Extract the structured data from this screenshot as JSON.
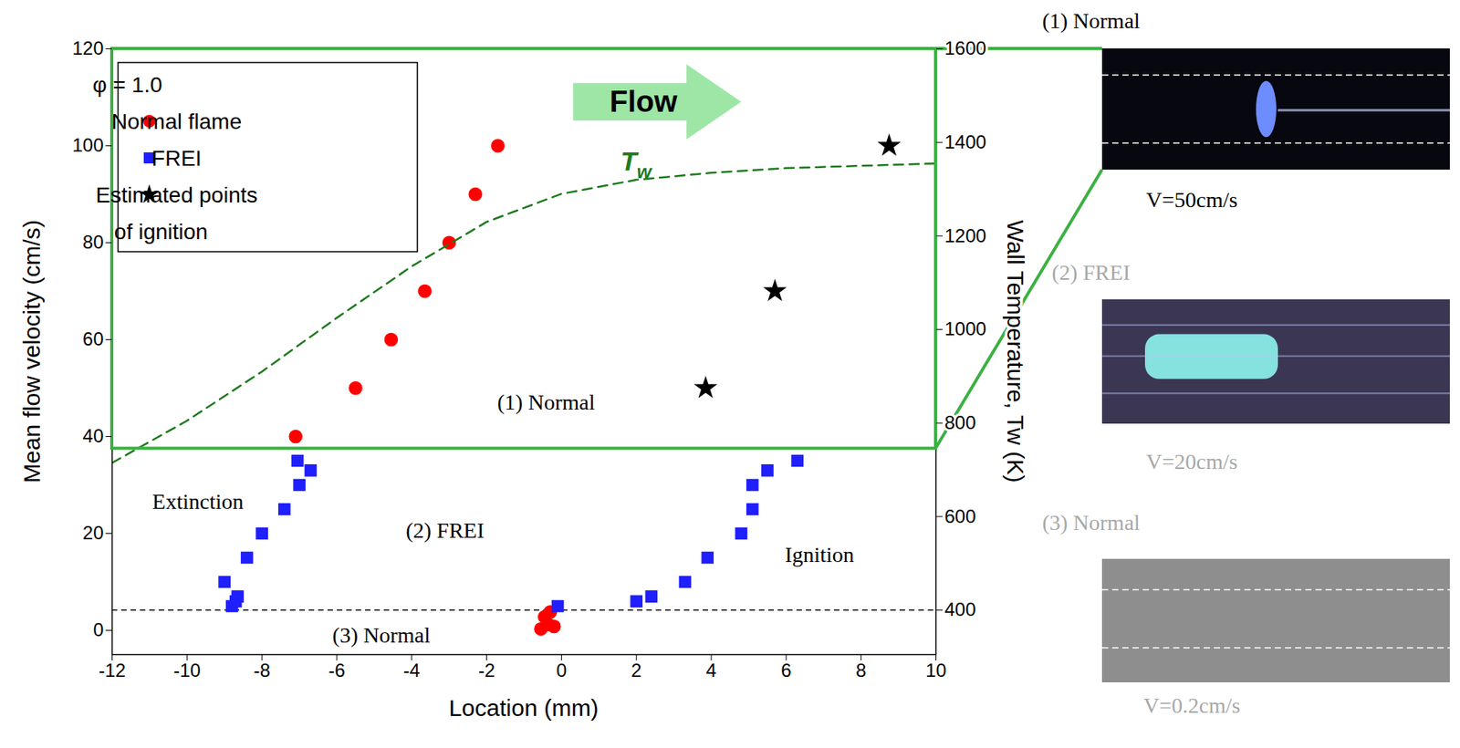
{
  "chart_data": {
    "type": "scatter",
    "xlabel": "Location (mm)",
    "ylabel": "Mean flow velocity (cm/s)",
    "y2label": "Wall Temperature, Tw (K)",
    "xlim": [
      -12,
      10
    ],
    "xticks": [
      -12,
      -10,
      -8,
      -6,
      -4,
      -2,
      0,
      2,
      4,
      6,
      8,
      10
    ],
    "ylim": [
      -5,
      120
    ],
    "yticks": [
      0,
      20,
      40,
      60,
      80,
      100,
      120
    ],
    "y2lim": [
      305,
      1600
    ],
    "y2ticks": [
      400,
      600,
      800,
      1000,
      1200,
      1400,
      1600
    ],
    "legend": "top-left",
    "legend_title": "φ = 1.0",
    "series": [
      {
        "name": "Normal flame",
        "color": "#ff0000",
        "marker": "circle",
        "x": [
          -7.1,
          -5.5,
          -4.55,
          -3.65,
          -3.0,
          -2.3,
          -1.7,
          -0.55,
          -0.45,
          -0.3,
          -0.35,
          -0.2
        ],
        "values": [
          40,
          50,
          60,
          70,
          80,
          90,
          100,
          0.3,
          2.8,
          3.8,
          1.2,
          0.8
        ]
      },
      {
        "name": "FREI",
        "color": "#1f1fff",
        "marker": "square",
        "x": [
          -9.0,
          -8.8,
          -8.7,
          -8.65,
          -8.4,
          -8.0,
          -7.4,
          -7.0,
          -7.05,
          -6.7,
          -0.1,
          2.0,
          2.4,
          3.3,
          3.9,
          4.8,
          5.1,
          5.1,
          5.5,
          6.3
        ],
        "values": [
          10,
          5,
          6,
          7,
          15,
          20,
          25,
          30,
          35,
          33,
          5,
          6,
          7,
          10,
          15,
          20,
          25,
          30,
          33,
          35
        ]
      },
      {
        "name": "Estimated points of ignition",
        "color": "#000000",
        "marker": "star",
        "x": [
          3.85,
          5.7,
          8.75
        ],
        "values": [
          50,
          70,
          100
        ]
      },
      {
        "name": "Tw",
        "type": "line",
        "axis": "y2",
        "color": "#1e7b1e",
        "line_style": "dashed",
        "x": [
          -12,
          -10,
          -8,
          -6,
          -4,
          -2,
          0,
          2,
          4,
          6,
          8,
          10
        ],
        "values": [
          715,
          805,
          910,
          1025,
          1135,
          1230,
          1290,
          1320,
          1335,
          1345,
          1350,
          1355
        ]
      }
    ],
    "regime_boundaries": [
      37.5,
      4.2
    ],
    "annotations": [
      {
        "text": "Flow",
        "x": 2.2,
        "y": 109
      },
      {
        "text": "(1) Normal",
        "x": -0.4,
        "y": 47
      },
      {
        "text": "(2) FREI",
        "x": -3.1,
        "y": 20.5
      },
      {
        "text": "(3) Normal",
        "x": -4.8,
        "y": -1
      },
      {
        "text": "Extinction",
        "x": -9.7,
        "y": 26.5
      },
      {
        "text": "Ignition",
        "x": 6.9,
        "y": 15.5
      }
    ],
    "images": [
      {
        "label": "(1) Normal",
        "caption": "V=50cm/s"
      },
      {
        "label": "(2) FREI",
        "caption": "V=20cm/s"
      },
      {
        "label": "(3) Normal",
        "caption": "V=0.2cm/s"
      }
    ]
  }
}
